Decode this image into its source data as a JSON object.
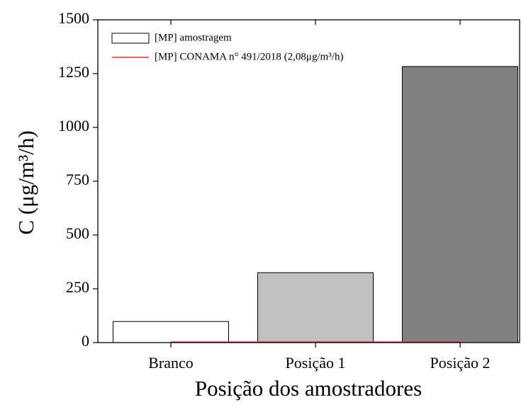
{
  "chart_data": {
    "type": "bar",
    "x_label": "Posição dos amostradores",
    "y_label": "C (μg/m³/h)",
    "categories": [
      "Branco",
      "Posição 1",
      "Posição 2"
    ],
    "series": [
      {
        "name": "[MP] amostragem",
        "type": "bar",
        "colors": [
          "#ffffff",
          "#c0c0c0",
          "#808080"
        ],
        "values": [
          98,
          325,
          1283
        ]
      },
      {
        "name": "[MP] CONAMA n° 491/2018 (2,08μg/m³/h)",
        "type": "line",
        "color": "#e8262a",
        "values": [
          2.08,
          2.08,
          2.08
        ]
      }
    ],
    "ylim": [
      0,
      1500
    ],
    "yticks": [
      0,
      250,
      500,
      750,
      1000,
      1250,
      1500
    ],
    "legend": "upper left"
  }
}
